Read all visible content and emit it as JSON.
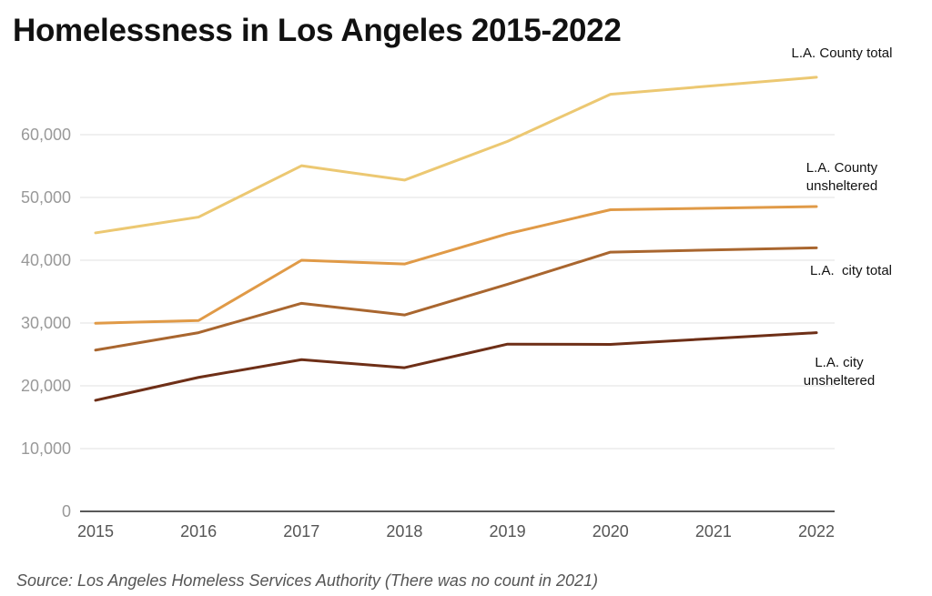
{
  "chart_data": {
    "type": "line",
    "title": "Homelessness in Los Angeles 2015-2022",
    "source": "Source: Los Angeles Homeless Services Authority (There was no count in 2021)",
    "x": [
      2015,
      2016,
      2017,
      2018,
      2019,
      2020,
      2021,
      2022
    ],
    "xticks": [
      "2015",
      "2016",
      "2017",
      "2018",
      "2019",
      "2020",
      "2021",
      "2022"
    ],
    "yticks": [
      "0",
      "10,000",
      "20,000",
      "30,000",
      "40,000",
      "50,000",
      "60,000"
    ],
    "ylim": [
      0,
      70000
    ],
    "grid": true,
    "legend": "direct labels at line ends (right)",
    "series": [
      {
        "name": "L.A. County total",
        "label_lines": [
          "L.A. County total"
        ],
        "color": "#ecc872",
        "values": [
          44359,
          46874,
          55048,
          52765,
          58936,
          66436,
          null,
          69144
        ]
      },
      {
        "name": "L.A. County unsheltered",
        "label_lines": [
          "L.A. County",
          "unsheltered"
        ],
        "color": "#e09a47",
        "values": [
          29969,
          30400,
          40000,
          39400,
          44214,
          48041,
          null,
          48548
        ]
      },
      {
        "name": "L.A. city total",
        "label_lines": [
          "L.A.  city total"
        ],
        "color": "#a9662f",
        "values": [
          25686,
          28464,
          33138,
          31285,
          36165,
          41290,
          null,
          41980
        ]
      },
      {
        "name": "L.A. city unsheltered",
        "label_lines": [
          "L.A. city",
          "unsheltered"
        ],
        "color": "#6e2f17",
        "values": [
          17687,
          21338,
          24165,
          22887,
          26635,
          26600,
          null,
          28458
        ]
      }
    ]
  }
}
